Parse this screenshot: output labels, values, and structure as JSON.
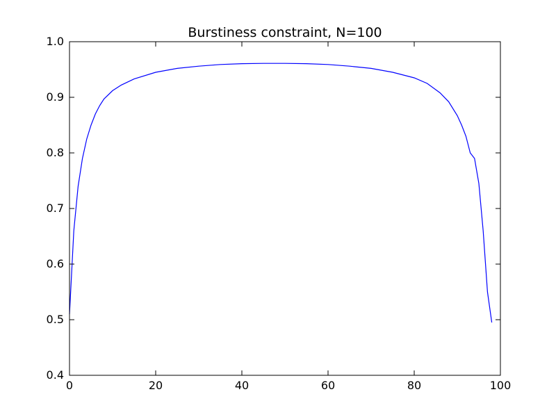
{
  "chart_data": {
    "type": "line",
    "title": "Burstiness constraint, N=100",
    "xlabel": "",
    "ylabel": "",
    "xlim": [
      0,
      100
    ],
    "ylim": [
      0.4,
      1.0
    ],
    "x_ticks": [
      0,
      20,
      40,
      60,
      80,
      100
    ],
    "y_ticks": [
      0.4,
      0.5,
      0.6,
      0.7,
      0.8,
      0.9,
      1.0
    ],
    "grid": false,
    "series": [
      {
        "color": "#0000ff",
        "x": [
          0,
          1,
          2,
          3,
          4,
          5,
          6,
          7,
          8,
          10,
          12,
          15,
          20,
          25,
          30,
          35,
          40,
          45,
          50,
          55,
          60,
          65,
          70,
          75,
          80,
          83,
          86,
          88,
          90,
          91,
          92,
          93,
          94,
          95,
          96,
          97,
          98
        ],
        "y": [
          0.51,
          0.66,
          0.74,
          0.79,
          0.825,
          0.85,
          0.87,
          0.885,
          0.897,
          0.912,
          0.922,
          0.933,
          0.945,
          0.952,
          0.956,
          0.959,
          0.9605,
          0.961,
          0.961,
          0.9605,
          0.959,
          0.956,
          0.952,
          0.945,
          0.935,
          0.925,
          0.908,
          0.892,
          0.867,
          0.85,
          0.83,
          0.8,
          0.79,
          0.745,
          0.66,
          0.55,
          0.495
        ]
      }
    ]
  }
}
